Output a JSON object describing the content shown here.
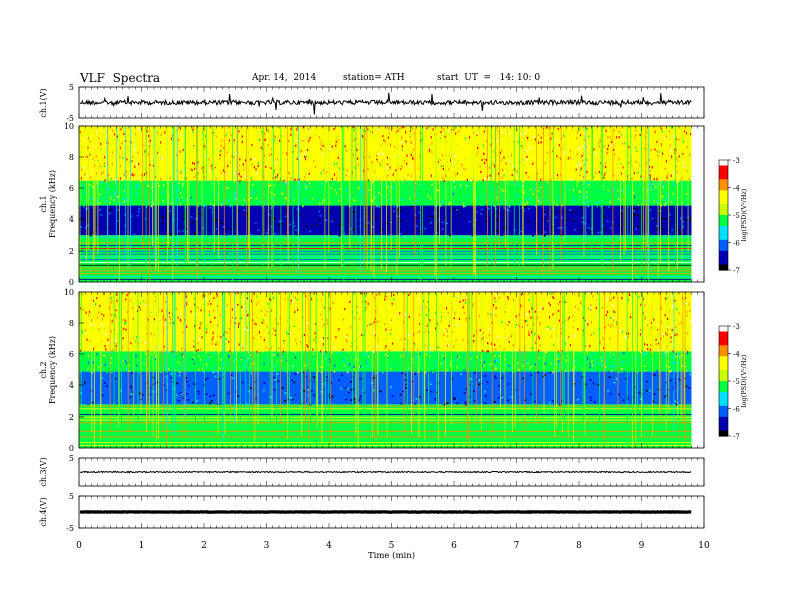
{
  "header": {
    "title": "VLF  Spectra",
    "date": "Apr. 14,  2014",
    "station": "station= ATH",
    "start": "start  UT  =   14: 10: 0"
  },
  "chart_data": [
    {
      "type": "line",
      "name": "ch1-waveform",
      "ylabel": "ch.1(V)",
      "ylim": [
        -5,
        5
      ],
      "yticks": [
        "5",
        "-5"
      ],
      "xlim": [
        0,
        10
      ],
      "baseline_v": 0
    },
    {
      "type": "heatmap",
      "name": "ch1-spectrogram",
      "ylabel": "ch.1\nFrequency  (kHz)",
      "ylim": [
        0,
        10
      ],
      "yticks": [
        "0",
        "2",
        "4",
        "6",
        "8",
        "10"
      ],
      "xlim": [
        0,
        10
      ],
      "data_end_min": 9.8,
      "colorbar": {
        "label": "log(PSD)(V²/Hz)",
        "range": [
          -7,
          -3
        ],
        "ticks": [
          "-3",
          "-4",
          "-5",
          "-6",
          "-7"
        ]
      },
      "bands": [
        {
          "from_khz": 0,
          "to_khz": 3.0,
          "log_psd": -5.4
        },
        {
          "from_khz": 3.0,
          "to_khz": 4.9,
          "log_psd": -6.4
        },
        {
          "from_khz": 4.9,
          "to_khz": 6.5,
          "log_psd": -5.2
        },
        {
          "from_khz": 6.5,
          "to_khz": 10,
          "log_psd": -4.2
        }
      ]
    },
    {
      "type": "heatmap",
      "name": "ch2-spectrogram",
      "ylabel": "ch.2\nFrequency  (kHz)",
      "ylim": [
        0,
        10
      ],
      "yticks": [
        "0",
        "2",
        "4",
        "6",
        "8",
        "10"
      ],
      "xlim": [
        0,
        10
      ],
      "data_end_min": 9.8,
      "colorbar": {
        "label": "log(PSD)(V²/Hz)",
        "range": [
          -7,
          -3
        ],
        "ticks": [
          "-3",
          "-4",
          "-5",
          "-6",
          "-7"
        ]
      },
      "bands": [
        {
          "from_khz": 0,
          "to_khz": 2.8,
          "log_psd": -5.2
        },
        {
          "from_khz": 2.8,
          "to_khz": 4.9,
          "log_psd": -6.2
        },
        {
          "from_khz": 4.9,
          "to_khz": 6.2,
          "log_psd": -5.3
        },
        {
          "from_khz": 6.2,
          "to_khz": 10,
          "log_psd": -4.2
        }
      ]
    },
    {
      "type": "line",
      "name": "ch3-waveform",
      "ylabel": "ch.3(V)",
      "ylim": [
        -5,
        5
      ],
      "yticks": [
        "5"
      ],
      "xlim": [
        0,
        10
      ],
      "baseline_v": 0
    },
    {
      "type": "line",
      "name": "ch4-waveform",
      "ylabel": "ch.4(V)",
      "ylim": [
        -5,
        5
      ],
      "yticks": [
        "5",
        "-5"
      ],
      "xlim": [
        0,
        10
      ],
      "baseline_v": 0
    }
  ],
  "xaxis": {
    "label": "Time  (min)",
    "ticks": [
      "0",
      "1",
      "2",
      "3",
      "4",
      "5",
      "6",
      "7",
      "8",
      "9",
      "10"
    ]
  },
  "colors": {
    "cmap": [
      "#000000",
      "#0000b0",
      "#0060ff",
      "#00e0ff",
      "#00ff40",
      "#c8ff00",
      "#ffff00",
      "#ff9000",
      "#ff0000",
      "#ffffff"
    ]
  }
}
